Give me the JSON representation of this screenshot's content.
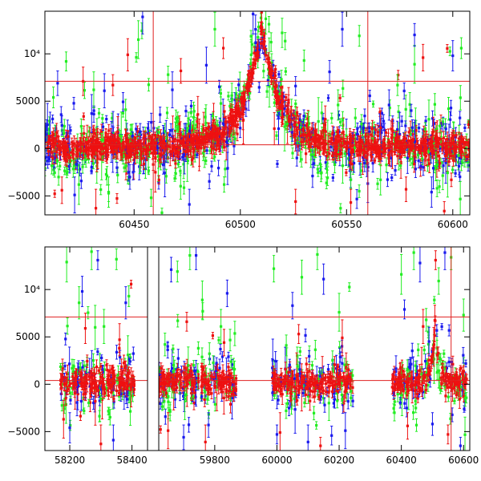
{
  "colors": {
    "frame": "#000000",
    "reference_lines": "#e02020",
    "band_1": "#22ee22",
    "band_2": "#1a1aee",
    "band_3": "#ee1111"
  },
  "chart_data": [
    {
      "type": "scatter",
      "title": "",
      "xlabel": "",
      "ylabel": "",
      "xlim": [
        60408,
        60608
      ],
      "ylim": [
        -7000,
        14500
      ],
      "x_ticks": [
        {
          "value": 60450,
          "label": "60450"
        },
        {
          "value": 60500,
          "label": "60500"
        },
        {
          "value": 60550,
          "label": "60550"
        },
        {
          "value": 60600,
          "label": "60600"
        }
      ],
      "y_ticks": [
        {
          "value": -5000,
          "label": "−5000"
        },
        {
          "value": 0,
          "label": "0"
        },
        {
          "value": 5000,
          "label": "5000"
        },
        {
          "value": 10000,
          "label": "10⁴"
        }
      ],
      "error_bars": true,
      "reference_lines": {
        "horizontal": [
          7100,
          400
        ],
        "vertical": [
          60459,
          60560
        ]
      },
      "segments": [
        [
          60408,
          60608
        ]
      ],
      "segment_gaps": [],
      "series": [
        {
          "name": "",
          "color": "#22ee22",
          "points": [
            [
              60412,
              5400
            ],
            [
              60418,
              9200
            ],
            [
              60424,
              -3800
            ],
            [
              60431,
              6200
            ],
            [
              60438,
              -4600
            ],
            [
              60446,
              4100
            ],
            [
              60452,
              11500
            ],
            [
              60458,
              -5200
            ],
            [
              60466,
              7800
            ],
            [
              60478,
              3300
            ],
            [
              60488,
              12600
            ],
            [
              60496,
              5600
            ],
            [
              60512,
              13700
            ],
            [
              60522,
              2600
            ],
            [
              60530,
              9300
            ],
            [
              60538,
              -2600
            ],
            [
              60546,
              4600
            ],
            [
              60556,
              11900
            ],
            [
              60566,
              -3300
            ],
            [
              60574,
              6700
            ],
            [
              60582,
              8900
            ],
            [
              60592,
              -1900
            ],
            [
              60598,
              4200
            ],
            [
              60604,
              10600
            ]
          ]
        },
        {
          "name": "",
          "color": "#1a1aee",
          "points": [
            [
              60414,
              6900
            ],
            [
              60422,
              -4900
            ],
            [
              60430,
              3700
            ],
            [
              60436,
              6100
            ],
            [
              60448,
              -3000
            ],
            [
              60454,
              13900
            ],
            [
              60468,
              6200
            ],
            [
              60476,
              -5900
            ],
            [
              60484,
              8800
            ],
            [
              60494,
              -2100
            ],
            [
              60506,
              14200
            ],
            [
              60518,
              2100
            ],
            [
              60526,
              6600
            ],
            [
              60534,
              -2900
            ],
            [
              60542,
              8100
            ],
            [
              60548,
              12600
            ],
            [
              60560,
              -3700
            ],
            [
              60570,
              4600
            ],
            [
              60582,
              12000
            ],
            [
              60590,
              -4600
            ],
            [
              60600,
              9800
            ]
          ]
        },
        {
          "name": "",
          "color": "#ee1111",
          "points": [
            [
              60416,
              -4400
            ],
            [
              60426,
              7100
            ],
            [
              60432,
              -6300
            ],
            [
              60440,
              6700
            ],
            [
              60447,
              9900
            ],
            [
              60460,
              -2500
            ],
            [
              60472,
              8200
            ],
            [
              60480,
              3600
            ],
            [
              60492,
              10600
            ],
            [
              60510,
              14400
            ],
            [
              60516,
              2100
            ],
            [
              60526,
              -5600
            ],
            [
              60540,
              3100
            ],
            [
              60552,
              -5700
            ],
            [
              60566,
              2200
            ],
            [
              60578,
              -4300
            ],
            [
              60586,
              9600
            ],
            [
              60596,
              -6600
            ]
          ]
        }
      ],
      "peak": {
        "center": 60510,
        "amplitude": 12500,
        "width": 9
      }
    },
    {
      "type": "scatter",
      "title": "",
      "xlabel": "",
      "ylabel": "",
      "xlim": [
        58120,
        60620
      ],
      "ylim": [
        -7000,
        14500
      ],
      "x_ticks": [
        {
          "value": 58200,
          "label": "58200"
        },
        {
          "value": 58400,
          "label": "58400"
        },
        {
          "value": 59800,
          "label": "59800"
        },
        {
          "value": 60000,
          "label": "60000"
        },
        {
          "value": 60200,
          "label": "60200"
        },
        {
          "value": 60400,
          "label": "60400"
        },
        {
          "value": 60600,
          "label": "60600"
        }
      ],
      "y_ticks": [
        {
          "value": -5000,
          "label": "−5000"
        },
        {
          "value": 0,
          "label": "0"
        },
        {
          "value": 5000,
          "label": "5000"
        },
        {
          "value": 10000,
          "label": "10⁴"
        }
      ],
      "error_bars": true,
      "reference_lines": {
        "horizontal": [
          7100,
          400
        ],
        "vertical": [
          60560
        ]
      },
      "segments": [
        [
          58120,
          58450
        ],
        [
          59620,
          60620
        ]
      ],
      "segment_gaps": [
        58450
      ],
      "data_intervals": [
        [
          58170,
          58410
        ],
        [
          59620,
          59870
        ],
        [
          59985,
          60245
        ],
        [
          60370,
          60610
        ]
      ],
      "series": [
        {
          "name": "",
          "color": "#22ee22",
          "points": [
            [
              58190,
              12900
            ],
            [
              58230,
              8600
            ],
            [
              58270,
              14000
            ],
            [
              58310,
              6100
            ],
            [
              58350,
              13200
            ],
            [
              58390,
              9300
            ],
            [
              59640,
              4200
            ],
            [
              59680,
              11900
            ],
            [
              59720,
              13600
            ],
            [
              59760,
              8900
            ],
            [
              59820,
              6100
            ],
            [
              59990,
              12200
            ],
            [
              60030,
              4100
            ],
            [
              60080,
              11300
            ],
            [
              60130,
              13700
            ],
            [
              60200,
              7600
            ],
            [
              60400,
              11600
            ],
            [
              60440,
              13900
            ],
            [
              60480,
              6800
            ],
            [
              60520,
              10900
            ],
            [
              60560,
              13400
            ],
            [
              60600,
              7300
            ]
          ]
        },
        {
          "name": "",
          "color": "#1a1aee",
          "points": [
            [
              58200,
              -4600
            ],
            [
              58240,
              9800
            ],
            [
              58290,
              13100
            ],
            [
              58340,
              -5900
            ],
            [
              58380,
              8600
            ],
            [
              59660,
              12100
            ],
            [
              59700,
              -5600
            ],
            [
              59740,
              13600
            ],
            [
              59780,
              -4300
            ],
            [
              59840,
              9600
            ],
            [
              60000,
              -5300
            ],
            [
              60050,
              8300
            ],
            [
              60100,
              -6100
            ],
            [
              60150,
              11100
            ],
            [
              60220,
              -4900
            ],
            [
              60410,
              7900
            ],
            [
              60460,
              12800
            ],
            [
              60500,
              -4200
            ],
            [
              60540,
              13900
            ],
            [
              60590,
              -6500
            ]
          ]
        },
        {
          "name": "",
          "color": "#ee1111",
          "points": [
            [
              58180,
              -3700
            ],
            [
              58250,
              5900
            ],
            [
              58300,
              -6300
            ],
            [
              58360,
              4700
            ],
            [
              59650,
              -4900
            ],
            [
              59710,
              6600
            ],
            [
              59770,
              -6100
            ],
            [
              59830,
              4400
            ],
            [
              60010,
              -5100
            ],
            [
              60070,
              5300
            ],
            [
              60140,
              -6500
            ],
            [
              60210,
              4900
            ],
            [
              60420,
              -4400
            ],
            [
              60470,
              6100
            ],
            [
              60510,
              13100
            ],
            [
              60550,
              -5300
            ]
          ]
        }
      ],
      "peak": {
        "center": 60510,
        "amplitude": 6000,
        "width": 12
      }
    }
  ]
}
